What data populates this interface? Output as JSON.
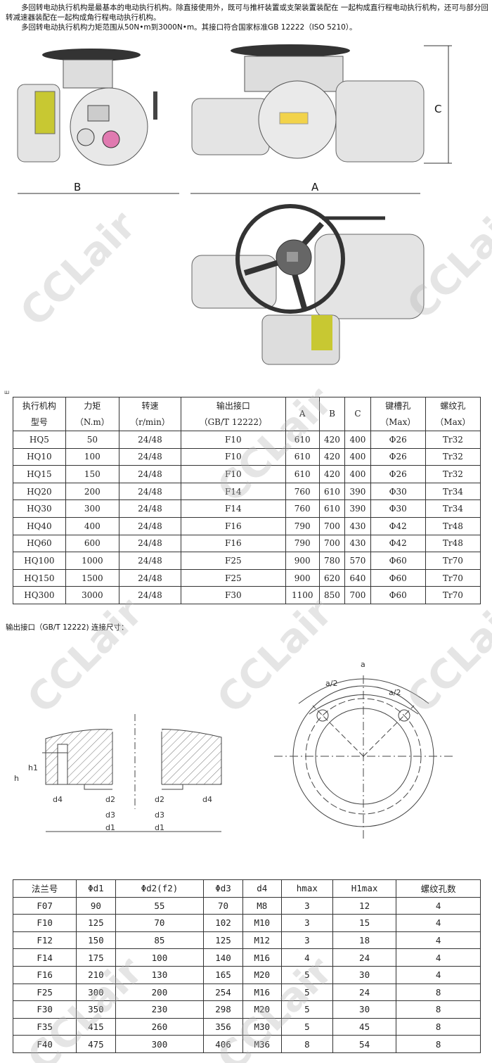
{
  "intro": {
    "line1": "多回转电动执行机构是最基本的电动执行机构。除直接使用外，既可与推杆装置或支架装置装配在 一起构成直行程电动执行机构，还可与部分回转减速器装配在一起构成角行程电动执行机构。",
    "line2": "多回转电动执行机构力矩范围从50N•m到3000N•m。其接口符合国家标准GB 12222（ISO 5210）。"
  },
  "drawing_labels": {
    "a": "A",
    "b": "B",
    "c": "C"
  },
  "table_marker": "ш",
  "spec_table": {
    "headers": [
      [
        "执行机构",
        "型号"
      ],
      [
        "力矩",
        "（N.m）"
      ],
      [
        "转速",
        "（r/min）"
      ],
      [
        "输出接口",
        "（GB/T 12222）"
      ],
      [
        "A"
      ],
      [
        "B"
      ],
      [
        "C"
      ],
      [
        "键槽孔",
        "（Max）"
      ],
      [
        "螺纹孔",
        "（Max）"
      ]
    ],
    "rows": [
      [
        "HQ5",
        "50",
        "24/48",
        "F10",
        "610",
        "420",
        "400",
        "Φ26",
        "Tr32"
      ],
      [
        "HQ10",
        "100",
        "24/48",
        "F10",
        "610",
        "420",
        "400",
        "Φ26",
        "Tr32"
      ],
      [
        "HQ15",
        "150",
        "24/48",
        "F10",
        "610",
        "420",
        "400",
        "Φ26",
        "Tr32"
      ],
      [
        "HQ20",
        "200",
        "24/48",
        "F14",
        "760",
        "610",
        "390",
        "Φ30",
        "Tr34"
      ],
      [
        "HQ30",
        "300",
        "24/48",
        "F14",
        "760",
        "610",
        "390",
        "Φ30",
        "Tr34"
      ],
      [
        "HQ40",
        "400",
        "24/48",
        "F16",
        "790",
        "700",
        "430",
        "Φ42",
        "Tr48"
      ],
      [
        "HQ60",
        "600",
        "24/48",
        "F16",
        "790",
        "700",
        "430",
        "Φ42",
        "Tr48"
      ],
      [
        "HQ100",
        "1000",
        "24/48",
        "F25",
        "900",
        "780",
        "570",
        "Φ60",
        "Tr70"
      ],
      [
        "HQ150",
        "1500",
        "24/48",
        "F25",
        "900",
        "620",
        "640",
        "Φ60",
        "Tr70"
      ],
      [
        "HQ300",
        "3000",
        "24/48",
        "F30",
        "1100",
        "850",
        "700",
        "Φ60",
        "Tr70"
      ]
    ]
  },
  "flange_caption": "输出接口（GB/T 12222) 连接尺寸：",
  "flange_drawing_labels": {
    "h": "h",
    "h1": "h1",
    "d1": "d1",
    "d2": "d2",
    "d3": "d3",
    "d4": "d4",
    "a": "a",
    "a_half": "a/2"
  },
  "flange_table": {
    "headers": [
      "法兰号",
      "Φd1",
      "Φd2(f2)",
      "Φd3",
      "d4",
      "hmax",
      "H1max",
      "螺纹孔数"
    ],
    "rows": [
      [
        "F07",
        "90",
        "55",
        "70",
        "M8",
        "3",
        "12",
        "4"
      ],
      [
        "F10",
        "125",
        "70",
        "102",
        "M10",
        "3",
        "15",
        "4"
      ],
      [
        "F12",
        "150",
        "85",
        "125",
        "M12",
        "3",
        "18",
        "4"
      ],
      [
        "F14",
        "175",
        "100",
        "140",
        "M16",
        "4",
        "24",
        "4"
      ],
      [
        "F16",
        "210",
        "130",
        "165",
        "M20",
        "5",
        "30",
        "4"
      ],
      [
        "F25",
        "300",
        "200",
        "254",
        "M16",
        "5",
        "24",
        "8"
      ],
      [
        "F30",
        "350",
        "230",
        "298",
        "M20",
        "5",
        "30",
        "8"
      ],
      [
        "F35",
        "415",
        "260",
        "356",
        "M30",
        "5",
        "45",
        "8"
      ],
      [
        "F40",
        "475",
        "300",
        "406",
        "M36",
        "8",
        "54",
        "8"
      ]
    ]
  },
  "watermark": "CCLair",
  "colors": {
    "body_gray": "#e4e4e4",
    "accent_yellow": "#c8c832",
    "line": "#333333"
  }
}
